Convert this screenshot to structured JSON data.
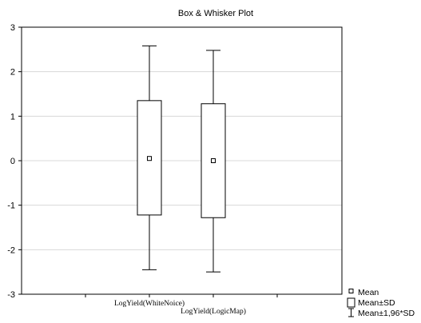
{
  "chart_data": {
    "type": "box",
    "title": "Box & Whisker Plot",
    "xlabel": "",
    "ylabel": "",
    "ylim": [
      -3,
      3
    ],
    "y_ticks": [
      3,
      2,
      1,
      0,
      -1,
      -2,
      -3
    ],
    "y_tick_labels": [
      "3",
      "2",
      "1",
      "0",
      "-1",
      "-2",
      "-3"
    ],
    "grid": "horizontal",
    "categories": [
      "LogYield(WhiteNoice)",
      "LogYield(LogicMap)"
    ],
    "series": [
      {
        "category": "LogYield(WhiteNoice)",
        "mean": 0.05,
        "sd_low": -1.22,
        "sd_high": 1.35,
        "whisker_low": -2.45,
        "whisker_high": 2.58
      },
      {
        "category": "LogYield(LogicMap)",
        "mean": 0.0,
        "sd_low": -1.28,
        "sd_high": 1.28,
        "whisker_low": -2.5,
        "whisker_high": 2.48
      }
    ],
    "legend": {
      "placement": "bottom-right",
      "items": [
        {
          "label": "Mean",
          "symbol": "small-square"
        },
        {
          "label": "Mean±SD",
          "symbol": "box"
        },
        {
          "label": "Mean±1,96*SD",
          "symbol": "whisker"
        }
      ]
    }
  }
}
